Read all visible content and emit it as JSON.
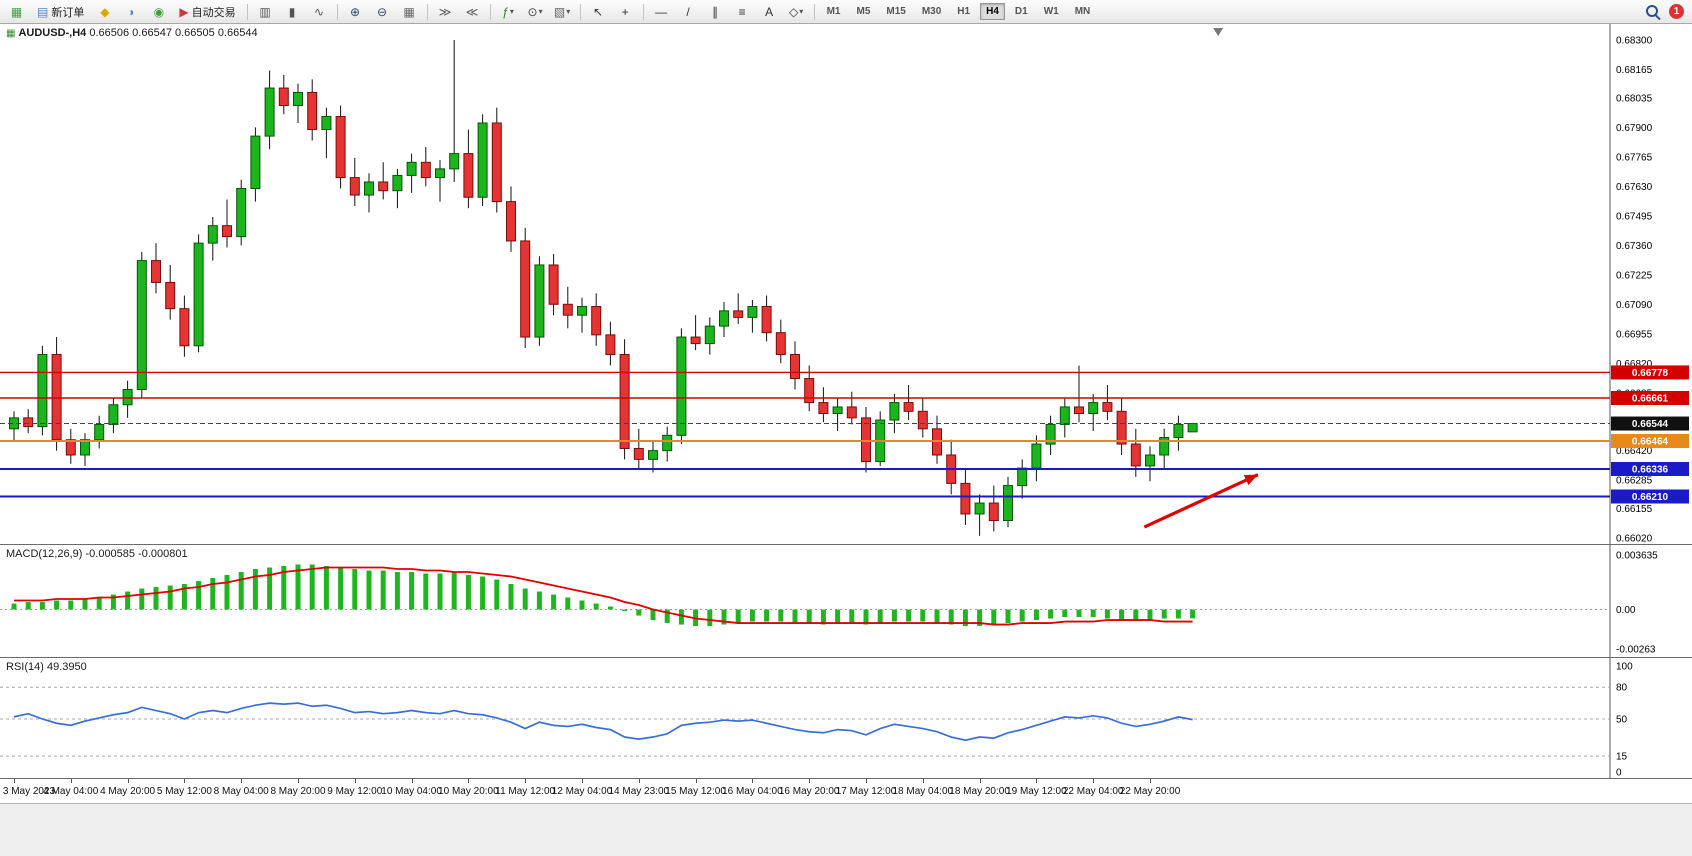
{
  "toolbar": {
    "left_items": [
      {
        "name": "new-chart",
        "glyph": "▦",
        "color": "#3f9e3f"
      },
      {
        "name": "new-order",
        "glyph": "▤",
        "color": "#4f86d0",
        "label": "新订单"
      },
      {
        "name": "expert-advisors",
        "glyph": "◆",
        "color": "#d9a800"
      },
      {
        "name": "market-depth",
        "glyph": "◗",
        "color": "#4f86d0"
      },
      {
        "name": "strategy-navigator",
        "glyph": "◉",
        "color": "#3f9e3f"
      },
      {
        "name": "auto-trading",
        "glyph": "▶",
        "color": "#cc3b3b",
        "label": "自动交易"
      },
      {
        "sep": true
      },
      {
        "name": "chart-bars",
        "glyph": "▥",
        "color": "#555555"
      },
      {
        "name": "chart-candles",
        "glyph": "▮",
        "color": "#555555"
      },
      {
        "name": "chart-line",
        "glyph": "∿",
        "color": "#555555"
      },
      {
        "sep": true
      },
      {
        "name": "zoom-in",
        "glyph": "⊕",
        "color": "#33496b"
      },
      {
        "name": "zoom-out",
        "glyph": "⊖",
        "color": "#33496b"
      },
      {
        "name": "tile-windows",
        "glyph": "▦",
        "color": "#666666"
      },
      {
        "sep": true
      },
      {
        "name": "auto-scroll",
        "glyph": "≫",
        "color": "#555555"
      },
      {
        "name": "chart-shift",
        "glyph": "≪",
        "color": "#555555"
      },
      {
        "sep": true
      },
      {
        "name": "indicators-menu",
        "glyph": "ƒ",
        "color": "#2d7d2d",
        "caret": true
      },
      {
        "name": "periods-menu",
        "glyph": "⊙",
        "color": "#444444",
        "caret": true
      },
      {
        "name": "templates-menu",
        "glyph": "▧",
        "color": "#666666",
        "caret": true
      },
      {
        "sep": true
      },
      {
        "name": "cursor",
        "glyph": "↖",
        "color": "#333333"
      },
      {
        "name": "crosshair",
        "glyph": "+",
        "color": "#333333"
      },
      {
        "sep": true
      },
      {
        "name": "horizontal-line",
        "glyph": "—",
        "color": "#333333"
      },
      {
        "name": "trendline",
        "glyph": "/",
        "color": "#333333"
      },
      {
        "name": "equidistant-channel",
        "glyph": "∥",
        "color": "#333333"
      },
      {
        "name": "fibonacci",
        "glyph": "≡",
        "color": "#333333"
      },
      {
        "name": "text-tool",
        "glyph": "A",
        "color": "#333333"
      },
      {
        "name": "shapes-menu",
        "glyph": "◇",
        "color": "#333333",
        "caret": true
      },
      {
        "sep": true
      }
    ],
    "timeframes": [
      "M1",
      "M5",
      "M15",
      "M30",
      "H1",
      "H4",
      "D1",
      "W1",
      "MN"
    ],
    "active_timeframe": "H4",
    "notification_count": "1"
  },
  "main_chart": {
    "header_symbol": "AUDUSD-,H4",
    "header_ohlc": "0.66506 0.66547 0.66505 0.66544"
  },
  "macd": {
    "label": "MACD(12,26,9)",
    "values": "-0.000585 -0.000801"
  },
  "rsi": {
    "label": "RSI(14)",
    "value": "49.3950"
  },
  "chart_data": [
    {
      "type": "candlestick",
      "title": "AUDUSD- H4",
      "ylim": [
        0.6602,
        0.683
      ],
      "y_ticks": [
        "0.68300",
        "0.68165",
        "0.68035",
        "0.67900",
        "0.67765",
        "0.67630",
        "0.67495",
        "0.67360",
        "0.67225",
        "0.67090",
        "0.66955",
        "0.66820",
        "0.66685",
        "0.66550",
        "0.66420",
        "0.66285",
        "0.66155",
        "0.66020"
      ],
      "x_labels": [
        "3 May 2023",
        "4 May 04:00",
        "4 May 20:00",
        "5 May 12:00",
        "8 May 04:00",
        "8 May 20:00",
        "9 May 12:00",
        "10 May 04:00",
        "10 May 20:00",
        "11 May 12:00",
        "12 May 04:00",
        "14 May 23:00",
        "15 May 12:00",
        "16 May 04:00",
        "16 May 20:00",
        "17 May 12:00",
        "18 May 04:00",
        "18 May 20:00",
        "19 May 12:00",
        "22 May 04:00",
        "22 May 20:00"
      ],
      "up_color": "#1db51d",
      "down_color": "#e53434",
      "hlines": [
        {
          "price": 0.66778,
          "label": "0.66778",
          "color": "#d40000",
          "width": 1.4
        },
        {
          "price": 0.66661,
          "label": "0.66661",
          "color": "#d40000",
          "width": 1.4
        },
        {
          "price": 0.66544,
          "label": "0.66544",
          "color": "#444444",
          "width": 1,
          "style": "dashed",
          "tag": "#111111"
        },
        {
          "price": 0.66464,
          "label": "0.66464",
          "color": "#e8891d",
          "width": 2
        },
        {
          "price": 0.66336,
          "label": "0.66336",
          "color": "#1a1ac8",
          "width": 2
        },
        {
          "price": 0.6621,
          "label": "0.66210",
          "color": "#1a1ac8",
          "width": 2
        }
      ],
      "arrow": {
        "start_bar": 79.6,
        "start_price": 0.6607,
        "end_bar": 87.6,
        "end_price": 0.6631,
        "color": "#e00000"
      },
      "shift_marker_bar": 84.8,
      "candles": [
        [
          0.6652,
          0.666,
          0.6646,
          0.6657
        ],
        [
          0.6657,
          0.6661,
          0.665,
          0.6653
        ],
        [
          0.6653,
          0.669,
          0.6649,
          0.6686
        ],
        [
          0.6686,
          0.6694,
          0.6642,
          0.6647
        ],
        [
          0.6647,
          0.6652,
          0.6636,
          0.664
        ],
        [
          0.664,
          0.665,
          0.6635,
          0.6647
        ],
        [
          0.6647,
          0.6658,
          0.6643,
          0.6654
        ],
        [
          0.6654,
          0.6666,
          0.665,
          0.6663
        ],
        [
          0.6663,
          0.6674,
          0.6657,
          0.667
        ],
        [
          0.667,
          0.6733,
          0.6666,
          0.6729
        ],
        [
          0.6729,
          0.6737,
          0.6714,
          0.6719
        ],
        [
          0.6719,
          0.6727,
          0.6702,
          0.6707
        ],
        [
          0.6707,
          0.6713,
          0.6685,
          0.669
        ],
        [
          0.669,
          0.6741,
          0.6687,
          0.6737
        ],
        [
          0.6737,
          0.6749,
          0.6729,
          0.6745
        ],
        [
          0.6745,
          0.6757,
          0.6735,
          0.674
        ],
        [
          0.674,
          0.6766,
          0.6736,
          0.6762
        ],
        [
          0.6762,
          0.679,
          0.6756,
          0.6786
        ],
        [
          0.6786,
          0.6816,
          0.678,
          0.6808
        ],
        [
          0.6808,
          0.6814,
          0.6796,
          0.68
        ],
        [
          0.68,
          0.681,
          0.6792,
          0.6806
        ],
        [
          0.6806,
          0.6812,
          0.6784,
          0.6789
        ],
        [
          0.6789,
          0.6799,
          0.6776,
          0.6795
        ],
        [
          0.6795,
          0.68,
          0.6762,
          0.6767
        ],
        [
          0.6767,
          0.6776,
          0.6754,
          0.6759
        ],
        [
          0.6759,
          0.6769,
          0.6751,
          0.6765
        ],
        [
          0.6765,
          0.6774,
          0.6757,
          0.6761
        ],
        [
          0.6761,
          0.6771,
          0.6753,
          0.6768
        ],
        [
          0.6768,
          0.6778,
          0.676,
          0.6774
        ],
        [
          0.6774,
          0.6781,
          0.6763,
          0.6767
        ],
        [
          0.6767,
          0.6775,
          0.6756,
          0.6771
        ],
        [
          0.6771,
          0.683,
          0.6765,
          0.6778
        ],
        [
          0.6778,
          0.6789,
          0.6753,
          0.6758
        ],
        [
          0.6758,
          0.6796,
          0.6754,
          0.6792
        ],
        [
          0.6792,
          0.6799,
          0.6751,
          0.6756
        ],
        [
          0.6756,
          0.6763,
          0.6733,
          0.6738
        ],
        [
          0.6738,
          0.6744,
          0.6689,
          0.6694
        ],
        [
          0.6694,
          0.6731,
          0.669,
          0.6727
        ],
        [
          0.6727,
          0.6732,
          0.6704,
          0.6709
        ],
        [
          0.6709,
          0.6717,
          0.6698,
          0.6704
        ],
        [
          0.6704,
          0.6712,
          0.6696,
          0.6708
        ],
        [
          0.6708,
          0.6714,
          0.669,
          0.6695
        ],
        [
          0.6695,
          0.6701,
          0.6681,
          0.6686
        ],
        [
          0.6686,
          0.6693,
          0.6638,
          0.6643
        ],
        [
          0.6643,
          0.6652,
          0.6634,
          0.6638
        ],
        [
          0.6638,
          0.6646,
          0.6632,
          0.6642
        ],
        [
          0.6642,
          0.6653,
          0.6637,
          0.6649
        ],
        [
          0.6649,
          0.6698,
          0.6645,
          0.6694
        ],
        [
          0.6694,
          0.6704,
          0.6688,
          0.6691
        ],
        [
          0.6691,
          0.6703,
          0.6686,
          0.6699
        ],
        [
          0.6699,
          0.671,
          0.6694,
          0.6706
        ],
        [
          0.6706,
          0.6714,
          0.67,
          0.6703
        ],
        [
          0.6703,
          0.6711,
          0.6696,
          0.6708
        ],
        [
          0.6708,
          0.6713,
          0.6692,
          0.6696
        ],
        [
          0.6696,
          0.6702,
          0.6682,
          0.6686
        ],
        [
          0.6686,
          0.6692,
          0.667,
          0.6675
        ],
        [
          0.6675,
          0.6681,
          0.666,
          0.6664
        ],
        [
          0.6664,
          0.6671,
          0.6655,
          0.6659
        ],
        [
          0.6659,
          0.6666,
          0.6651,
          0.6662
        ],
        [
          0.6662,
          0.6669,
          0.6654,
          0.6657
        ],
        [
          0.6657,
          0.6662,
          0.6632,
          0.6637
        ],
        [
          0.6637,
          0.666,
          0.6635,
          0.6656
        ],
        [
          0.6656,
          0.6668,
          0.665,
          0.6664
        ],
        [
          0.6664,
          0.6672,
          0.6656,
          0.666
        ],
        [
          0.666,
          0.6666,
          0.6648,
          0.6652
        ],
        [
          0.6652,
          0.6658,
          0.6636,
          0.664
        ],
        [
          0.664,
          0.6647,
          0.6622,
          0.6627
        ],
        [
          0.6627,
          0.6634,
          0.6608,
          0.6613
        ],
        [
          0.6613,
          0.6622,
          0.6603,
          0.6618
        ],
        [
          0.6618,
          0.6626,
          0.6605,
          0.661
        ],
        [
          0.661,
          0.663,
          0.6607,
          0.6626
        ],
        [
          0.6626,
          0.6638,
          0.662,
          0.6634
        ],
        [
          0.6634,
          0.6649,
          0.6628,
          0.6645
        ],
        [
          0.6645,
          0.6658,
          0.664,
          0.6654
        ],
        [
          0.6654,
          0.6666,
          0.6648,
          0.6662
        ],
        [
          0.6662,
          0.6681,
          0.6655,
          0.6659
        ],
        [
          0.6659,
          0.6668,
          0.6651,
          0.6664
        ],
        [
          0.6664,
          0.6672,
          0.6656,
          0.666
        ],
        [
          0.666,
          0.6666,
          0.664,
          0.6645
        ],
        [
          0.6645,
          0.6652,
          0.663,
          0.6635
        ],
        [
          0.6635,
          0.6644,
          0.6628,
          0.664
        ],
        [
          0.664,
          0.6652,
          0.6634,
          0.6648
        ],
        [
          0.6648,
          0.6658,
          0.6642,
          0.6654
        ],
        [
          0.66506,
          0.66547,
          0.66505,
          0.66544
        ]
      ]
    },
    {
      "type": "line",
      "name": "MACD",
      "title": "MACD(12,26,9)",
      "current_values": "-0.000585 -0.000801",
      "ylim": [
        -0.00263,
        0.003635
      ],
      "y_ticks": [
        "0.003635",
        "0.00",
        "-0.00263"
      ],
      "histogram_color": "#1fb51f",
      "signal_color": "#e00000",
      "histogram": [
        0.0004,
        0.0005,
        0.0005,
        0.0006,
        0.0006,
        0.0007,
        0.0008,
        0.001,
        0.0012,
        0.0014,
        0.0015,
        0.0016,
        0.0017,
        0.0019,
        0.0021,
        0.0023,
        0.0025,
        0.0027,
        0.0028,
        0.0029,
        0.003,
        0.003,
        0.0029,
        0.0028,
        0.0027,
        0.0026,
        0.0026,
        0.0025,
        0.0025,
        0.0024,
        0.0024,
        0.0025,
        0.0023,
        0.0022,
        0.002,
        0.0017,
        0.0014,
        0.0012,
        0.001,
        0.0008,
        0.0006,
        0.0004,
        0.0002,
        -0.0001,
        -0.0004,
        -0.0007,
        -0.0009,
        -0.001,
        -0.0011,
        -0.0011,
        -0.001,
        -0.0009,
        -0.0008,
        -0.0008,
        -0.0008,
        -0.0009,
        -0.0009,
        -0.001,
        -0.0009,
        -0.0009,
        -0.001,
        -0.0009,
        -0.0008,
        -0.0008,
        -0.0008,
        -0.0009,
        -0.001,
        -0.0011,
        -0.0011,
        -0.001,
        -0.0009,
        -0.0008,
        -0.0007,
        -0.0006,
        -0.0005,
        -0.0005,
        -0.0005,
        -0.0006,
        -0.0007,
        -0.0007,
        -0.0007,
        -0.0006,
        -0.0006,
        -0.000585
      ],
      "signal": [
        0.0006,
        0.0006,
        0.0006,
        0.0007,
        0.0007,
        0.0007,
        0.0008,
        0.0008,
        0.0009,
        0.001,
        0.0011,
        0.0012,
        0.0014,
        0.0015,
        0.0017,
        0.0018,
        0.002,
        0.0022,
        0.0023,
        0.0025,
        0.0026,
        0.0027,
        0.0028,
        0.0028,
        0.0028,
        0.0028,
        0.0028,
        0.0027,
        0.0027,
        0.0026,
        0.0026,
        0.0025,
        0.0025,
        0.0024,
        0.0023,
        0.0022,
        0.002,
        0.0018,
        0.0016,
        0.0014,
        0.0012,
        0.001,
        0.0008,
        0.0005,
        0.0003,
        0.0,
        -0.0002,
        -0.0004,
        -0.0006,
        -0.0007,
        -0.0008,
        -0.0009,
        -0.0009,
        -0.0009,
        -0.0009,
        -0.0009,
        -0.0009,
        -0.0009,
        -0.0009,
        -0.0009,
        -0.0009,
        -0.0009,
        -0.0009,
        -0.0009,
        -0.0009,
        -0.0009,
        -0.0009,
        -0.0009,
        -0.0009,
        -0.001,
        -0.001,
        -0.0009,
        -0.0009,
        -0.0009,
        -0.0008,
        -0.0008,
        -0.0008,
        -0.0007,
        -0.0007,
        -0.0007,
        -0.0007,
        -0.0008,
        -0.0008,
        -0.000801
      ]
    },
    {
      "type": "line",
      "name": "RSI",
      "title": "RSI(14)",
      "current_value": "49.3950",
      "ylim": [
        0,
        100
      ],
      "levels": [
        80,
        50,
        15
      ],
      "y_ticks": [
        "100",
        "80",
        "50",
        "15",
        "0"
      ],
      "line_color": "#3a6fd8",
      "values": [
        52,
        55,
        50,
        46,
        44,
        48,
        51,
        54,
        56,
        61,
        58,
        55,
        50,
        56,
        58,
        56,
        60,
        63,
        65,
        64,
        65,
        62,
        63,
        60,
        56,
        57,
        55,
        56,
        58,
        56,
        55,
        58,
        55,
        54,
        51,
        47,
        41,
        47,
        44,
        43,
        45,
        42,
        40,
        33,
        31,
        33,
        36,
        44,
        46,
        47,
        49,
        48,
        49,
        46,
        43,
        40,
        38,
        37,
        40,
        39,
        35,
        41,
        45,
        43,
        41,
        38,
        33,
        30,
        33,
        32,
        37,
        40,
        44,
        48,
        52,
        51,
        53,
        51,
        46,
        43,
        45,
        48,
        52,
        49.4
      ]
    }
  ]
}
